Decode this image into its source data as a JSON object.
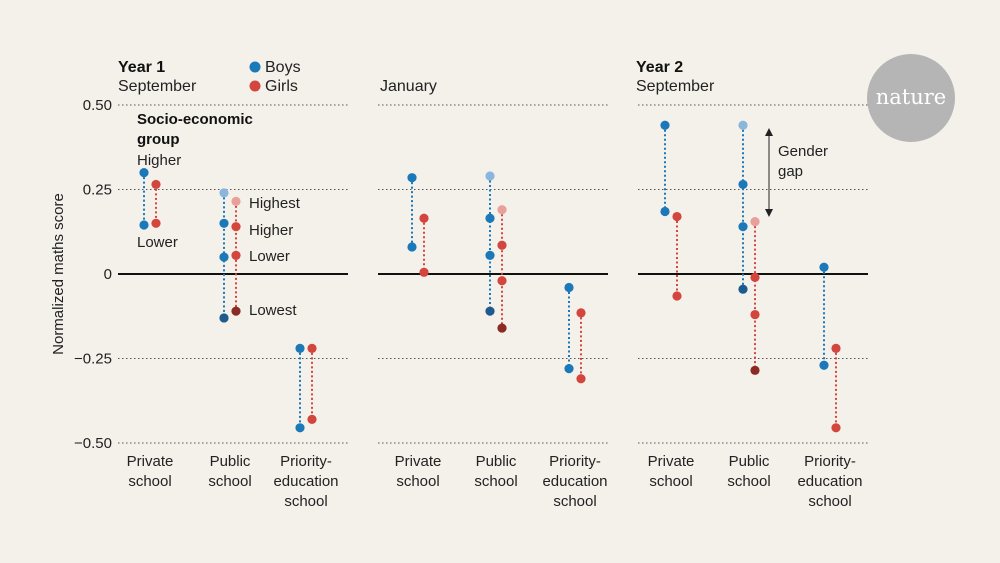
{
  "logo": {
    "text": "nature",
    "color": "#b5b5b5"
  },
  "legend": {
    "boys": "Boys",
    "girls": "Girls"
  },
  "colors": {
    "boys": [
      "#8ab6de",
      "#1b78b9",
      "#1f5a8e"
    ],
    "girls": [
      "#e9a09a",
      "#d2463d",
      "#8c2a25"
    ]
  },
  "annotations": {
    "group_title_1": "Socio-economic",
    "group_title_2": "group",
    "higher": "Higher",
    "lower": "Lower",
    "ses_highest": "Highest",
    "ses_higher": "Higher",
    "ses_lower": "Lower",
    "ses_lowest": "Lowest",
    "gender_gap_1": "Gender",
    "gender_gap_2": "gap"
  },
  "chart_data": {
    "type": "scatter",
    "ylabel": "Normalized maths score",
    "ylim": [
      -0.5,
      0.5
    ],
    "yticks": [
      0.5,
      0.25,
      0,
      -0.25,
      -0.5
    ],
    "ytick_labels": [
      "0.50",
      "0.25",
      "0",
      "−0.25",
      "−0.50"
    ],
    "grid": true,
    "legend_placement": "top-left",
    "series": [
      {
        "name": "Boys"
      },
      {
        "name": "Girls"
      }
    ],
    "categories": [
      {
        "lines": [
          "Private",
          "school"
        ]
      },
      {
        "lines": [
          "Public",
          "school"
        ]
      },
      {
        "lines": [
          "Priority-",
          "education",
          "school"
        ]
      }
    ],
    "panels": [
      {
        "title": "Year 1",
        "subtitle": "September",
        "groups": [
          {
            "category": "Private school",
            "boys": {
              "Higher": 0.3,
              "Lower": 0.145
            },
            "girls": {
              "Higher": 0.265,
              "Lower": 0.15
            }
          },
          {
            "category": "Public school",
            "boys": {
              "Highest": 0.24,
              "Higher": 0.15,
              "Lower": 0.05,
              "Lowest": -0.13
            },
            "girls": {
              "Highest": 0.215,
              "Higher": 0.14,
              "Lower": 0.055,
              "Lowest": -0.11
            }
          },
          {
            "category": "Priority-education school",
            "boys": {
              "Higher": -0.22,
              "Lower": -0.455
            },
            "girls": {
              "Higher": -0.22,
              "Lower": -0.43
            }
          }
        ]
      },
      {
        "title": "",
        "subtitle": "January",
        "groups": [
          {
            "category": "Private school",
            "boys": {
              "Higher": 0.285,
              "Lower": 0.08
            },
            "girls": {
              "Higher": 0.165,
              "Lower": 0.005
            }
          },
          {
            "category": "Public school",
            "boys": {
              "Highest": 0.29,
              "Higher": 0.165,
              "Lower": 0.055,
              "Lowest": -0.11
            },
            "girls": {
              "Highest": 0.19,
              "Higher": 0.085,
              "Lower": -0.02,
              "Lowest": -0.16
            }
          },
          {
            "category": "Priority-education school",
            "boys": {
              "Higher": -0.04,
              "Lower": -0.28
            },
            "girls": {
              "Higher": -0.115,
              "Lower": -0.31
            }
          }
        ]
      },
      {
        "title": "Year 2",
        "subtitle": "September",
        "groups": [
          {
            "category": "Private school",
            "boys": {
              "Higher": 0.44,
              "Lower": 0.185
            },
            "girls": {
              "Higher": 0.17,
              "Lower": -0.065
            }
          },
          {
            "category": "Public school",
            "boys": {
              "Highest": 0.44,
              "Higher": 0.265,
              "Lower": 0.14,
              "Lowest": -0.045
            },
            "girls": {
              "Highest": 0.155,
              "Higher": -0.01,
              "Lower": -0.12,
              "Lowest": -0.285
            }
          },
          {
            "category": "Priority-education school",
            "boys": {
              "Higher": 0.02,
              "Lower": -0.27
            },
            "girls": {
              "Higher": -0.22,
              "Lower": -0.455
            }
          }
        ]
      }
    ]
  }
}
